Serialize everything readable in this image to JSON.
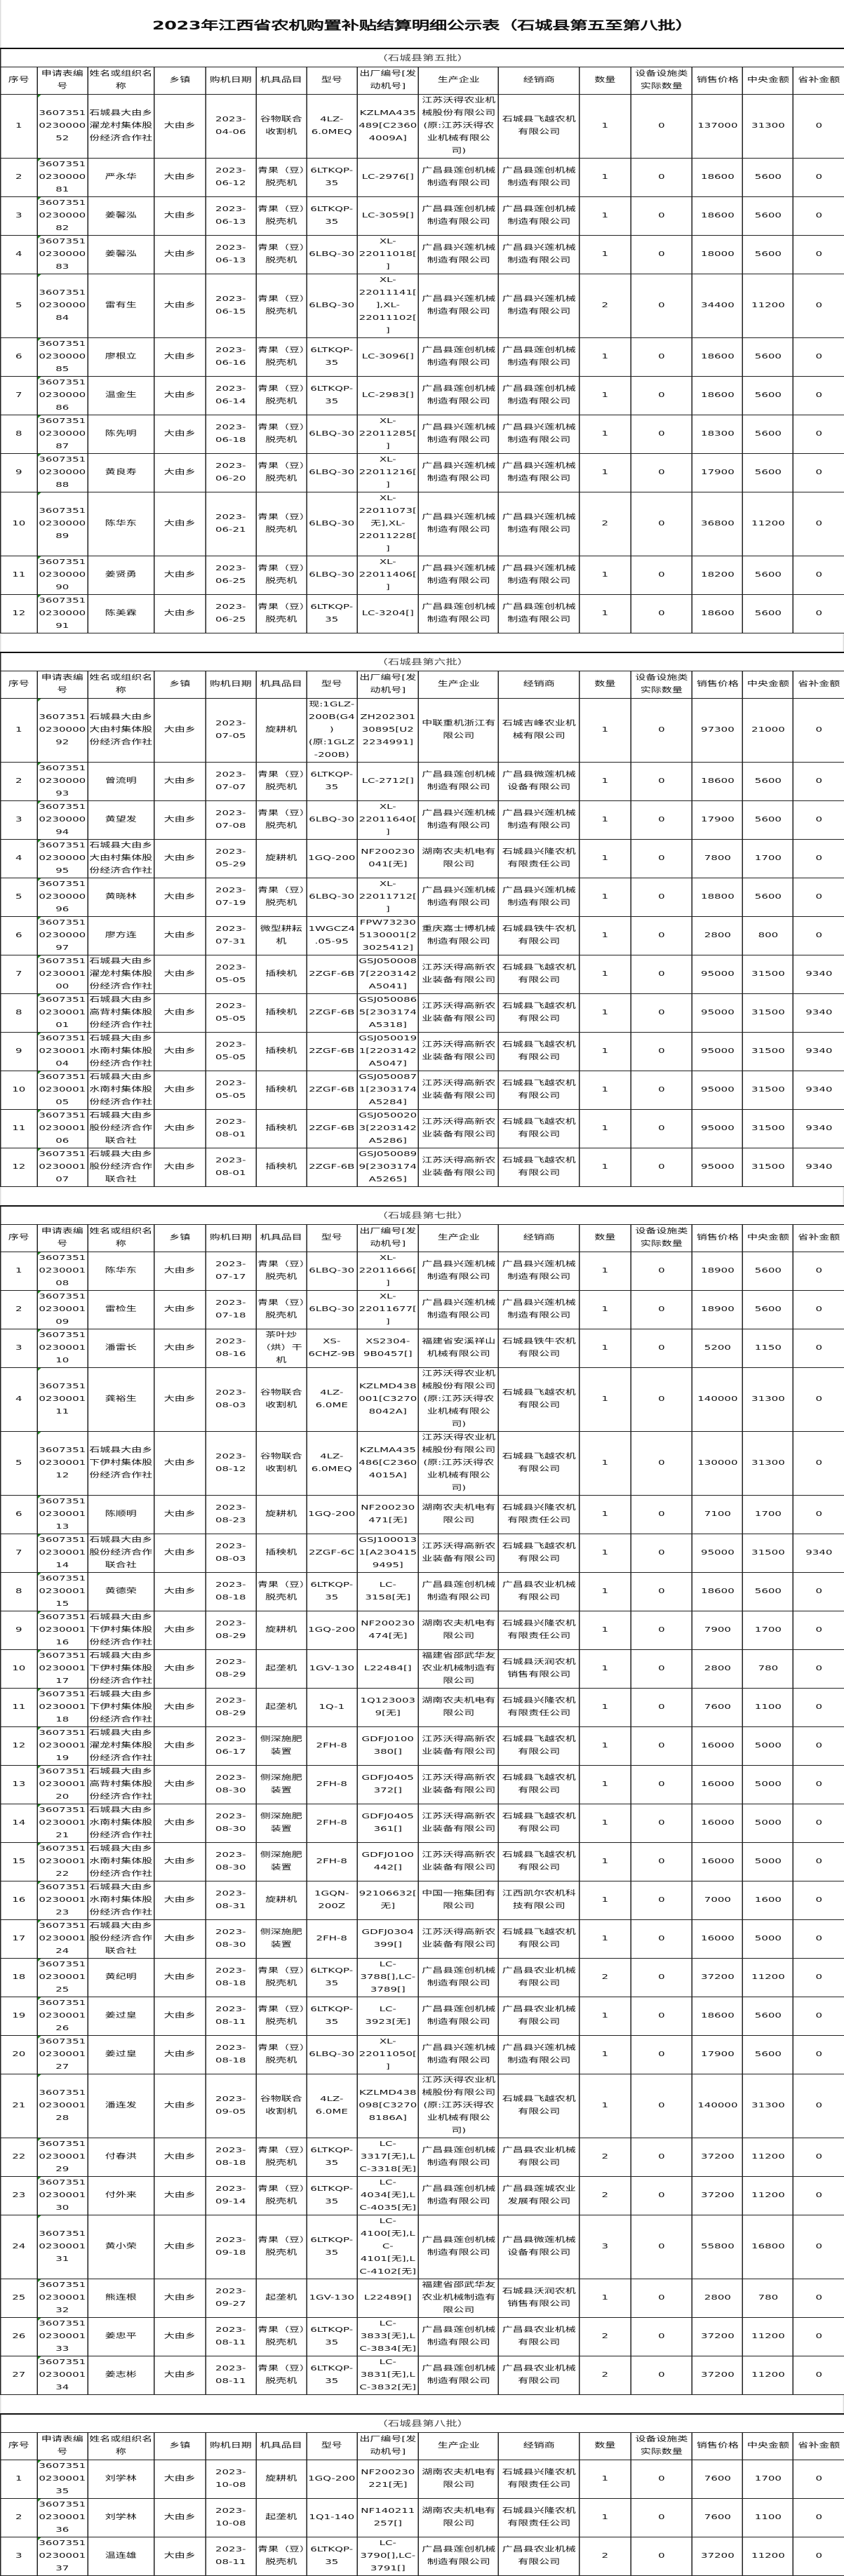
{
  "title": "2023年江西省农机购置补贴结算明细公示表（石城县第五至第八批）",
  "columns": [
    "序号",
    "申请表编号",
    "姓名或组织名称",
    "乡镇",
    "购机日期",
    "机具品目",
    "型号",
    "出厂编号[发动机号]",
    "生产企业",
    "经销商",
    "数量",
    "设备设施类实际数量",
    "销售价格",
    "中央金额",
    "省补金额"
  ],
  "batches": [
    {
      "caption": "（石城县第五批）",
      "rows": [
        [
          "1",
          "3607351023000052",
          "石城县大由乡濯龙村集体股份经济合作社",
          "大由乡",
          "2023-04-06",
          "谷物联合收割机",
          "4LZ-6.0MEQ",
          "KZLMA435489[C23604009A]",
          "江苏沃得农业机械股份有限公司(原:江苏沃得农业机械有限公司)",
          "石城县飞越农机有限公司",
          "1",
          "0",
          "137000",
          "31300",
          "0"
        ],
        [
          "2",
          "3607351023000081",
          "严永华",
          "大由乡",
          "2023-06-12",
          "青果（豆）脱壳机",
          "6LTKQP-35",
          "LC-2976[]",
          "广昌县莲创机械制造有限公司",
          "广昌县莲创机械制造有限公司",
          "1",
          "0",
          "18600",
          "5600",
          "0"
        ],
        [
          "3",
          "3607351023000082",
          "姜馨泓",
          "大由乡",
          "2023-06-13",
          "青果（豆）脱壳机",
          "6LTKQP-35",
          "LC-3059[]",
          "广昌县莲创机械制造有限公司",
          "广昌县莲创机械制造有限公司",
          "1",
          "0",
          "18600",
          "5600",
          "0"
        ],
        [
          "4",
          "3607351023000083",
          "姜馨泓",
          "大由乡",
          "2023-06-13",
          "青果（豆）脱壳机",
          "6LBQ-30",
          "XL-22011018[]",
          "广昌县兴莲机械制造有限公司",
          "广昌县兴莲机械制造有限公司",
          "1",
          "0",
          "18000",
          "5600",
          "0"
        ],
        [
          "5",
          "3607351023000084",
          "雷有生",
          "大由乡",
          "2023-06-15",
          "青果（豆）脱壳机",
          "6LBQ-30",
          "XL-22011141[],XL-22011102[]",
          "广昌县兴莲机械制造有限公司",
          "广昌县兴莲机械制造有限公司",
          "2",
          "0",
          "34400",
          "11200",
          "0"
        ],
        [
          "6",
          "3607351023000085",
          "廖根立",
          "大由乡",
          "2023-06-16",
          "青果（豆）脱壳机",
          "6LTKQP-35",
          "LC-3096[]",
          "广昌县莲创机械制造有限公司",
          "广昌县莲创机械制造有限公司",
          "1",
          "0",
          "18600",
          "5600",
          "0"
        ],
        [
          "7",
          "3607351023000086",
          "温金生",
          "大由乡",
          "2023-06-14",
          "青果（豆）脱壳机",
          "6LTKQP-35",
          "LC-2983[]",
          "广昌县莲创机械制造有限公司",
          "广昌县莲创机械制造有限公司",
          "1",
          "0",
          "18600",
          "5600",
          "0"
        ],
        [
          "8",
          "3607351023000087",
          "陈先明",
          "大由乡",
          "2023-06-18",
          "青果（豆）脱壳机",
          "6LBQ-30",
          "XL-22011285[]",
          "广昌县兴莲机械制造有限公司",
          "广昌县兴莲机械制造有限公司",
          "1",
          "0",
          "18300",
          "5600",
          "0"
        ],
        [
          "9",
          "3607351023000088",
          "黄良寿",
          "大由乡",
          "2023-06-20",
          "青果（豆）脱壳机",
          "6LBQ-30",
          "XL-22011216[]",
          "广昌县兴莲机械制造有限公司",
          "广昌县兴莲机械制造有限公司",
          "1",
          "0",
          "17900",
          "5600",
          "0"
        ],
        [
          "10",
          "3607351023000089",
          "陈华东",
          "大由乡",
          "2023-06-21",
          "青果（豆）脱壳机",
          "6LBQ-30",
          "XL-22011073[无],XL-22011228[]",
          "广昌县兴莲机械制造有限公司",
          "广昌县兴莲机械制造有限公司",
          "2",
          "0",
          "36800",
          "11200",
          "0"
        ],
        [
          "11",
          "3607351023000090",
          "姜贤勇",
          "大由乡",
          "2023-06-25",
          "青果（豆）脱壳机",
          "6LBQ-30",
          "XL-22011406[]",
          "广昌县兴莲机械制造有限公司",
          "广昌县兴莲机械制造有限公司",
          "1",
          "0",
          "18200",
          "5600",
          "0"
        ],
        [
          "12",
          "3607351023000091",
          "陈美霖",
          "大由乡",
          "2023-06-25",
          "青果（豆）脱壳机",
          "6LTKQP-35",
          "LC-3204[]",
          "广昌县莲创机械制造有限公司",
          "广昌县莲创机械制造有限公司",
          "1",
          "0",
          "18600",
          "5600",
          "0"
        ]
      ]
    },
    {
      "caption": "（石城县第六批）",
      "rows": [
        [
          "1",
          "3607351023000092",
          "石城县大由乡大由村集体股份经济合作社",
          "大由乡",
          "2023-07-05",
          "旋耕机",
          "现:1GLZ-200B(G4)(原:1GLZ-200B)",
          "ZH20230130895[U22234991]",
          "中联重机浙江有限公司",
          "石城吉峰农业机械有限公司",
          "1",
          "0",
          "97300",
          "21000",
          "0"
        ],
        [
          "2",
          "3607351023000093",
          "曾流明",
          "大由乡",
          "2023-07-07",
          "青果（豆）脱壳机",
          "6LTKQP-35",
          "LC-2712[]",
          "广昌县莲创机械制造有限公司",
          "广昌县微莲机械设备有限公司",
          "1",
          "0",
          "18600",
          "5600",
          "0"
        ],
        [
          "3",
          "3607351023000094",
          "黄望发",
          "大由乡",
          "2023-07-08",
          "青果（豆）脱壳机",
          "6LBQ-30",
          "XL-22011640[]",
          "广昌县兴莲机械制造有限公司",
          "广昌县兴莲机械制造有限公司",
          "1",
          "0",
          "17900",
          "5600",
          "0"
        ],
        [
          "4",
          "3607351023000095",
          "石城县大由乡大由村集体股份经济合作社",
          "大由乡",
          "2023-05-29",
          "旋耕机",
          "1GQ-200",
          "NF200230041[无]",
          "湖南农夫机电有限公司",
          "石城县兴隆农机有限责任公司",
          "1",
          "0",
          "7800",
          "1700",
          "0"
        ],
        [
          "5",
          "3607351023000096",
          "黄晓林",
          "大由乡",
          "2023-07-19",
          "青果（豆）脱壳机",
          "6LBQ-30",
          "XL-22011712[]",
          "广昌县兴莲机械制造有限公司",
          "广昌县兴莲机械制造有限公司",
          "1",
          "0",
          "18800",
          "5600",
          "0"
        ],
        [
          "6",
          "3607351023000097",
          "廖方连",
          "大由乡",
          "2023-07-31",
          "微型耕耘机",
          "1WGCZ4.05-95",
          "FPW732305130001[23025412]",
          "重庆嘉士博机械制造有限公司",
          "石城县铁牛农机有限公司",
          "1",
          "0",
          "2800",
          "800",
          "0"
        ],
        [
          "7",
          "3607351023000100",
          "石城县大由乡濯龙村集体股份经济合作社",
          "大由乡",
          "2023-05-05",
          "插秧机",
          "2ZGF-6B",
          "GSJ0500087[2203142A5041]",
          "江苏沃得高新农业装备有限公司",
          "石城县飞越农机有限公司",
          "1",
          "0",
          "95000",
          "31500",
          "9340"
        ],
        [
          "8",
          "3607351023000101",
          "石城县大由乡高背村集体股份经济合作社",
          "大由乡",
          "2023-05-05",
          "插秧机",
          "2ZGF-6B",
          "GSJ0500865[2303174A5318]",
          "江苏沃得高新农业装备有限公司",
          "石城县飞越农机有限公司",
          "1",
          "0",
          "95000",
          "31500",
          "9340"
        ],
        [
          "9",
          "3607351023000104",
          "石城县大由乡水南村集体股份经济合作社",
          "大由乡",
          "2023-05-05",
          "插秧机",
          "2ZGF-6B",
          "GSJ0500191[2203142A5047]",
          "江苏沃得高新农业装备有限公司",
          "石城县飞越农机有限公司",
          "1",
          "0",
          "95000",
          "31500",
          "9340"
        ],
        [
          "10",
          "3607351023000105",
          "石城县大由乡水南村集体股份经济合作社",
          "大由乡",
          "2023-05-05",
          "插秧机",
          "2ZGF-6B",
          "GSJ0500871[2303174A5284]",
          "江苏沃得高新农业装备有限公司",
          "石城县飞越农机有限公司",
          "1",
          "0",
          "95000",
          "31500",
          "9340"
        ],
        [
          "11",
          "3607351023000106",
          "石城县大由乡股份经济合作联合社",
          "大由乡",
          "2023-08-01",
          "插秧机",
          "2ZGF-6B",
          "GSJ0500203[2203142A5286]",
          "江苏沃得高新农业装备有限公司",
          "石城县飞越农机有限公司",
          "1",
          "0",
          "95000",
          "31500",
          "9340"
        ],
        [
          "12",
          "3607351023000107",
          "石城县大由乡股份经济合作联合社",
          "大由乡",
          "2023-08-01",
          "插秧机",
          "2ZGF-6B",
          "GSJ0500899[2303174A5265]",
          "江苏沃得高新农业装备有限公司",
          "石城县飞越农机有限公司",
          "1",
          "0",
          "95000",
          "31500",
          "9340"
        ]
      ]
    },
    {
      "caption": "（石城县第七批）",
      "rows": [
        [
          "1",
          "3607351023000108",
          "陈华东",
          "大由乡",
          "2023-07-17",
          "青果（豆）脱壳机",
          "6LBQ-30",
          "XL-22011666[]",
          "广昌县兴莲机械制造有限公司",
          "广昌县兴莲机械制造有限公司",
          "1",
          "0",
          "18900",
          "5600",
          "0"
        ],
        [
          "2",
          "3607351023000109",
          "雷检生",
          "大由乡",
          "2023-07-18",
          "青果（豆）脱壳机",
          "6LBQ-30",
          "XL-22011677[]",
          "广昌县兴莲机械制造有限公司",
          "广昌县兴莲机械制造有限公司",
          "1",
          "0",
          "18900",
          "5600",
          "0"
        ],
        [
          "3",
          "3607351023000110",
          "潘雷长",
          "大由乡",
          "2023-08-16",
          "茶叶炒（烘）干机",
          "XS-6CHZ-9B",
          "XS2304-9B0457[]",
          "福建省安溪祥山机械有限公司",
          "石城县铁牛农机有限公司",
          "1",
          "0",
          "5200",
          "1150",
          "0"
        ],
        [
          "4",
          "3607351023000111",
          "龚裕生",
          "大由乡",
          "2023-08-03",
          "谷物联合收割机",
          "4LZ-6.0ME",
          "KZLMD438001[C32708042A]",
          "江苏沃得农业机械股份有限公司(原:江苏沃得农业机械有限公司)",
          "石城县飞越农机有限公司",
          "1",
          "0",
          "140000",
          "31300",
          "0"
        ],
        [
          "5",
          "3607351023000112",
          "石城县大由乡下伊村集体股份经济合作社",
          "大由乡",
          "2023-08-12",
          "谷物联合收割机",
          "4LZ-6.0MEQ",
          "KZLMA435486[C23604015A]",
          "江苏沃得农业机械股份有限公司(原:江苏沃得农业机械有限公司)",
          "石城县飞越农机有限公司",
          "1",
          "0",
          "130000",
          "31300",
          "0"
        ],
        [
          "6",
          "3607351023000113",
          "陈顺明",
          "大由乡",
          "2023-08-23",
          "旋耕机",
          "1GQ-200",
          "NF200230471[无]",
          "湖南农夫机电有限公司",
          "石城县兴隆农机有限责任公司",
          "1",
          "0",
          "7100",
          "1700",
          "0"
        ],
        [
          "7",
          "3607351023000114",
          "石城县大由乡股份经济合作联合社",
          "大由乡",
          "2023-08-03",
          "插秧机",
          "2ZGF-6C",
          "GSJ1000131[A2304159495]",
          "江苏沃得高新农业装备有限公司",
          "石城县飞越农机有限公司",
          "1",
          "0",
          "95000",
          "31500",
          "9340"
        ],
        [
          "8",
          "3607351023000115",
          "黄德荣",
          "大由乡",
          "2023-08-18",
          "青果（豆）脱壳机",
          "6LTKQP-35",
          "LC-3158[无]",
          "广昌县莲创机械制造有限公司",
          "广昌县农业机械有限公司",
          "1",
          "0",
          "18600",
          "5600",
          "0"
        ],
        [
          "9",
          "3607351023000116",
          "石城县大由乡下伊村集体股份经济合作社",
          "大由乡",
          "2023-08-29",
          "旋耕机",
          "1GQ-200",
          "NF200230474[无]",
          "湖南农夫机电有限公司",
          "石城县兴隆农机有限责任公司",
          "1",
          "0",
          "7900",
          "1700",
          "0"
        ],
        [
          "10",
          "3607351023000117",
          "石城县大由乡下伊村集体股份经济合作社",
          "大由乡",
          "2023-08-29",
          "起垄机",
          "1GV-130",
          "L22484[]",
          "福建省邵武华友农业机械制造有限公司",
          "石城县沃润农机销售有限公司",
          "1",
          "0",
          "2800",
          "780",
          "0"
        ],
        [
          "11",
          "3607351023000118",
          "石城县大由乡下伊村集体股份经济合作社",
          "大由乡",
          "2023-08-29",
          "起垄机",
          "1Q-1",
          "1Q1230039[无]",
          "湖南农夫机电有限公司",
          "石城县兴隆农机有限责任公司",
          "1",
          "0",
          "7600",
          "1100",
          "0"
        ],
        [
          "12",
          "3607351023000119",
          "石城县大由乡濯龙村集体股份经济合作社",
          "大由乡",
          "2023-06-17",
          "侧深施肥装置",
          "2FH-8",
          "GDFJ0100380[]",
          "江苏沃得高新农业装备有限公司",
          "石城县飞越农机有限公司",
          "1",
          "0",
          "16000",
          "5000",
          "0"
        ],
        [
          "13",
          "3607351023000120",
          "石城县大由乡高背村集体股份经济合作社",
          "大由乡",
          "2023-08-30",
          "侧深施肥装置",
          "2FH-8",
          "GDFJ0405372[]",
          "江苏沃得高新农业装备有限公司",
          "石城县飞越农机有限公司",
          "1",
          "0",
          "16000",
          "5000",
          "0"
        ],
        [
          "14",
          "3607351023000121",
          "石城县大由乡水南村集体股份经济合作社",
          "大由乡",
          "2023-08-30",
          "侧深施肥装置",
          "2FH-8",
          "GDFJ0405361[]",
          "江苏沃得高新农业装备有限公司",
          "石城县飞越农机有限公司",
          "1",
          "0",
          "16000",
          "5000",
          "0"
        ],
        [
          "15",
          "3607351023000122",
          "石城县大由乡水南村集体股份经济合作社",
          "大由乡",
          "2023-08-30",
          "侧深施肥装置",
          "2FH-8",
          "GDFJ0100442[]",
          "江苏沃得高新农业装备有限公司",
          "石城县飞越农机有限公司",
          "1",
          "0",
          "16000",
          "5000",
          "0"
        ],
        [
          "16",
          "3607351023000123",
          "石城县大由乡水南村集体股份经济合作社",
          "大由乡",
          "2023-08-31",
          "旋耕机",
          "1GQN-200Z",
          "92106632[无]",
          "中国一拖集团有限公司",
          "江西凯尔农机科技有限公司",
          "1",
          "0",
          "7000",
          "1600",
          "0"
        ],
        [
          "17",
          "3607351023000124",
          "石城县大由乡股份经济合作联合社",
          "大由乡",
          "2023-08-30",
          "侧深施肥装置",
          "2FH-8",
          "GDFJ0304399[]",
          "江苏沃得高新农业装备有限公司",
          "石城县飞越农机有限公司",
          "1",
          "0",
          "16000",
          "5000",
          "0"
        ],
        [
          "18",
          "3607351023000125",
          "黄纪明",
          "大由乡",
          "2023-08-18",
          "青果（豆）脱壳机",
          "6LTKQP-35",
          "LC-3788[],LC-3789[]",
          "广昌县莲创机械制造有限公司",
          "广昌县农业机械有限公司",
          "2",
          "0",
          "37200",
          "11200",
          "0"
        ],
        [
          "19",
          "3607351023000126",
          "姜过皇",
          "大由乡",
          "2023-08-11",
          "青果（豆）脱壳机",
          "6LTKQP-35",
          "LC-3923[无]",
          "广昌县莲创机械制造有限公司",
          "广昌县农业机械有限公司",
          "1",
          "0",
          "18600",
          "5600",
          "0"
        ],
        [
          "20",
          "3607351023000127",
          "姜过皇",
          "大由乡",
          "2023-08-18",
          "青果（豆）脱壳机",
          "6LBQ-30",
          "XL-22011050[]",
          "广昌县兴莲机械制造有限公司",
          "广昌县兴莲机械制造有限公司",
          "1",
          "0",
          "17900",
          "5600",
          "0"
        ],
        [
          "21",
          "3607351023000128",
          "潘连发",
          "大由乡",
          "2023-09-05",
          "谷物联合收割机",
          "4LZ-6.0ME",
          "KZLMD438098[C32708186A]",
          "江苏沃得农业机械股份有限公司(原:江苏沃得农业机械有限公司)",
          "石城县飞越农机有限公司",
          "1",
          "0",
          "140000",
          "31300",
          "0"
        ],
        [
          "22",
          "3607351023000129",
          "付春洪",
          "大由乡",
          "2023-08-18",
          "青果（豆）脱壳机",
          "6LTKQP-35",
          "LC-3317[无],LC-3318[无]",
          "广昌县莲创机械制造有限公司",
          "广昌县农业机械有限公司",
          "2",
          "0",
          "37200",
          "11200",
          "0"
        ],
        [
          "23",
          "3607351023000130",
          "付外来",
          "大由乡",
          "2023-09-14",
          "青果（豆）脱壳机",
          "6LTKQP-35",
          "LC-4034[无],LC-4035[无]",
          "广昌县莲创机械制造有限公司",
          "广昌县莲城农业发展有限公司",
          "2",
          "0",
          "37200",
          "11200",
          "0"
        ],
        [
          "24",
          "3607351023000131",
          "黄小荣",
          "大由乡",
          "2023-09-18",
          "青果（豆）脱壳机",
          "6LTKQP-35",
          "LC-4100[无],LC-4101[无],LC-4102[无]",
          "广昌县莲创机械制造有限公司",
          "广昌县微莲机械设备有限公司",
          "3",
          "0",
          "55800",
          "16800",
          "0"
        ],
        [
          "25",
          "3607351023000132",
          "熊连根",
          "大由乡",
          "2023-09-27",
          "起垄机",
          "1GV-130",
          "L22489[]",
          "福建省邵武华友农业机械制造有限公司",
          "石城县沃润农机销售有限公司",
          "1",
          "0",
          "2800",
          "780",
          "0"
        ],
        [
          "26",
          "3607351023000133",
          "姜忠平",
          "大由乡",
          "2023-08-11",
          "青果（豆）脱壳机",
          "6LTKQP-35",
          "LC-3833[无],LC-3834[无]",
          "广昌县莲创机械制造有限公司",
          "广昌县农业机械有限公司",
          "2",
          "0",
          "37200",
          "11200",
          "0"
        ],
        [
          "27",
          "3607351023000134",
          "姜志彬",
          "大由乡",
          "2023-08-11",
          "青果（豆）脱壳机",
          "6LTKQP-35",
          "LC-3831[无],LC-3832[无]",
          "广昌县莲创机械制造有限公司",
          "广昌县农业机械有限公司",
          "2",
          "0",
          "37200",
          "11200",
          "0"
        ]
      ]
    },
    {
      "caption": "（石城县第八批）",
      "rows": [
        [
          "1",
          "3607351023000135",
          "刘学林",
          "大由乡",
          "2023-10-08",
          "旋耕机",
          "1GQ-200",
          "NF200230221[无]",
          "湖南农夫机电有限公司",
          "石城县兴隆农机有限责任公司",
          "1",
          "0",
          "7600",
          "1700",
          "0"
        ],
        [
          "2",
          "3607351023000136",
          "刘学林",
          "大由乡",
          "2023-10-08",
          "起垄机",
          "1Q1-140",
          "NF140211257[]",
          "湖南农夫机电有限公司",
          "石城县兴隆农机有限责任公司",
          "1",
          "0",
          "7600",
          "1100",
          "0"
        ],
        [
          "3",
          "3607351023000137",
          "温连雄",
          "大由乡",
          "2023-08-11",
          "青果（豆）脱壳机",
          "6LTKQP-35",
          "LC-3790[],LC-3791[]",
          "广昌县莲创机械制造有限公司",
          "广昌县农业机械有限公司",
          "2",
          "0",
          "37200",
          "11200",
          "0"
        ]
      ]
    }
  ]
}
